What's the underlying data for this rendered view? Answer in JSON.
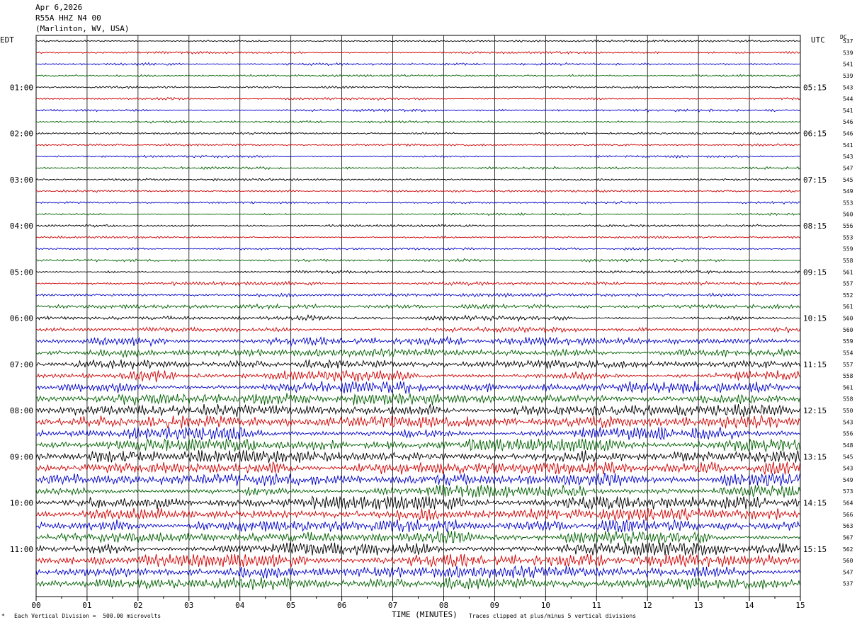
{
  "header": {
    "date": "Apr 6,2026",
    "station": "R55A HHZ N4 00",
    "location": "(Marlinton, WV, USA)"
  },
  "labels": {
    "left_zone": "EDT",
    "right_zone": "UTC",
    "dc_header": "DC"
  },
  "footer": {
    "scale_note": "Each Vertical Division =  500.00 microvolts",
    "x_axis_title": "TIME (MINUTES)",
    "clip_note": "Traces clipped at plus/minus 5 vertical divisions"
  },
  "chart_data": {
    "type": "line",
    "title": "R55A HHZ N4 00",
    "xlabel": "TIME (MINUTES)",
    "xlim": [
      0,
      15
    ],
    "x_ticks": [
      "00",
      "01",
      "02",
      "03",
      "04",
      "05",
      "06",
      "07",
      "08",
      "09",
      "10",
      "11",
      "12",
      "13",
      "14",
      "15"
    ],
    "trace_count": 48,
    "trace_colors": [
      "#000000",
      "#d00000",
      "#0000c8",
      "#006000"
    ],
    "left_hour_labels": [
      "01:00",
      "02:00",
      "03:00",
      "04:00",
      "05:00",
      "06:00",
      "07:00",
      "08:00",
      "09:00",
      "10:00",
      "11:00"
    ],
    "right_hour_labels": [
      "05:15",
      "06:15",
      "07:15",
      "08:15",
      "09:15",
      "10:15",
      "11:15",
      "12:15",
      "13:15",
      "14:15",
      "15:15"
    ],
    "dc_offsets": [
      537,
      539,
      541,
      539,
      543,
      544,
      541,
      546,
      546,
      541,
      543,
      547,
      545,
      549,
      553,
      560,
      556,
      553,
      559,
      558,
      561,
      557,
      552,
      561,
      560,
      560,
      559,
      554,
      557,
      558,
      561,
      558,
      550,
      543,
      556,
      548,
      545,
      543,
      549,
      573,
      564,
      566,
      563,
      567,
      562,
      560,
      547,
      537
    ],
    "activity": [
      0.5,
      0.5,
      0.5,
      0.5,
      0.5,
      0.5,
      0.5,
      0.5,
      0.5,
      0.5,
      0.5,
      0.5,
      0.5,
      0.5,
      0.5,
      0.5,
      0.5,
      0.5,
      0.5,
      0.6,
      0.6,
      0.7,
      0.8,
      1.0,
      1.0,
      1.0,
      1.1,
      1.2,
      1.3,
      1.5,
      1.5,
      1.6,
      1.7,
      2.0,
      1.9,
      1.8,
      1.9,
      1.9,
      2.0,
      1.9,
      1.9,
      1.9,
      1.9,
      1.8,
      1.9,
      1.8,
      1.9,
      1.8
    ]
  }
}
